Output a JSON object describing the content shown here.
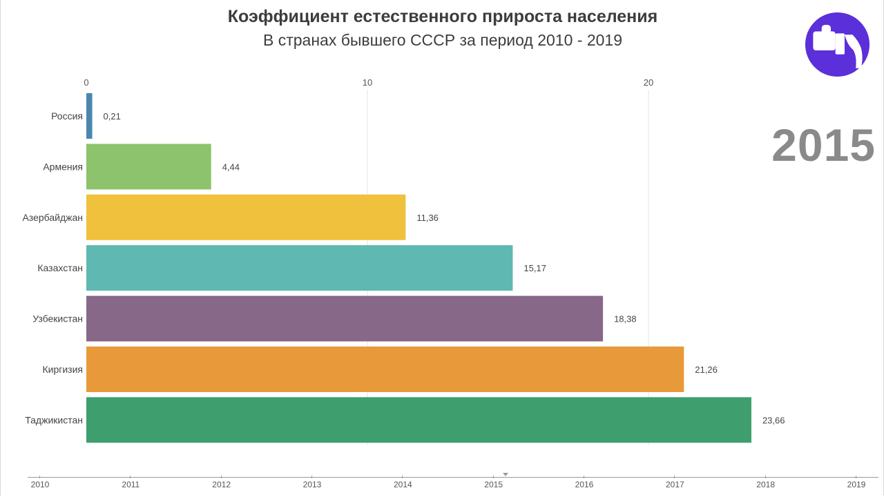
{
  "chart_data": {
    "type": "bar",
    "orientation": "horizontal",
    "title": "Коэффициент естественного прироста населения",
    "subtitle": "В странах бывшего СССР за период 2010 - 2019",
    "current_year": "2015",
    "categories": [
      "Россия",
      "Армения",
      "Азербайджан",
      "Казахстан",
      "Узбекистан",
      "Киргизия",
      "Таджикистан"
    ],
    "values": [
      0.21,
      4.44,
      11.36,
      15.17,
      18.38,
      21.26,
      23.66
    ],
    "value_labels": [
      "0,21",
      "4,44",
      "11,36",
      "15,17",
      "18,38",
      "21,26",
      "23,66"
    ],
    "colors": [
      "#4a86ad",
      "#8cc36c",
      "#efc13c",
      "#5fb8b1",
      "#876888",
      "#e89a3a",
      "#3e9e6e"
    ],
    "x_axis": {
      "ticks": [
        0,
        10,
        20
      ],
      "tick_labels": [
        "0",
        "10",
        "20"
      ],
      "position": "top",
      "range": [
        0,
        25.2
      ]
    },
    "grid": true,
    "timeline_years": [
      "2010",
      "2011",
      "2012",
      "2013",
      "2014",
      "2015",
      "2016",
      "2017",
      "2018",
      "2019"
    ],
    "timeline_progress": 0.57
  },
  "logo": {
    "name": "thumbs-down-icon",
    "color": "#5b2fd9"
  }
}
